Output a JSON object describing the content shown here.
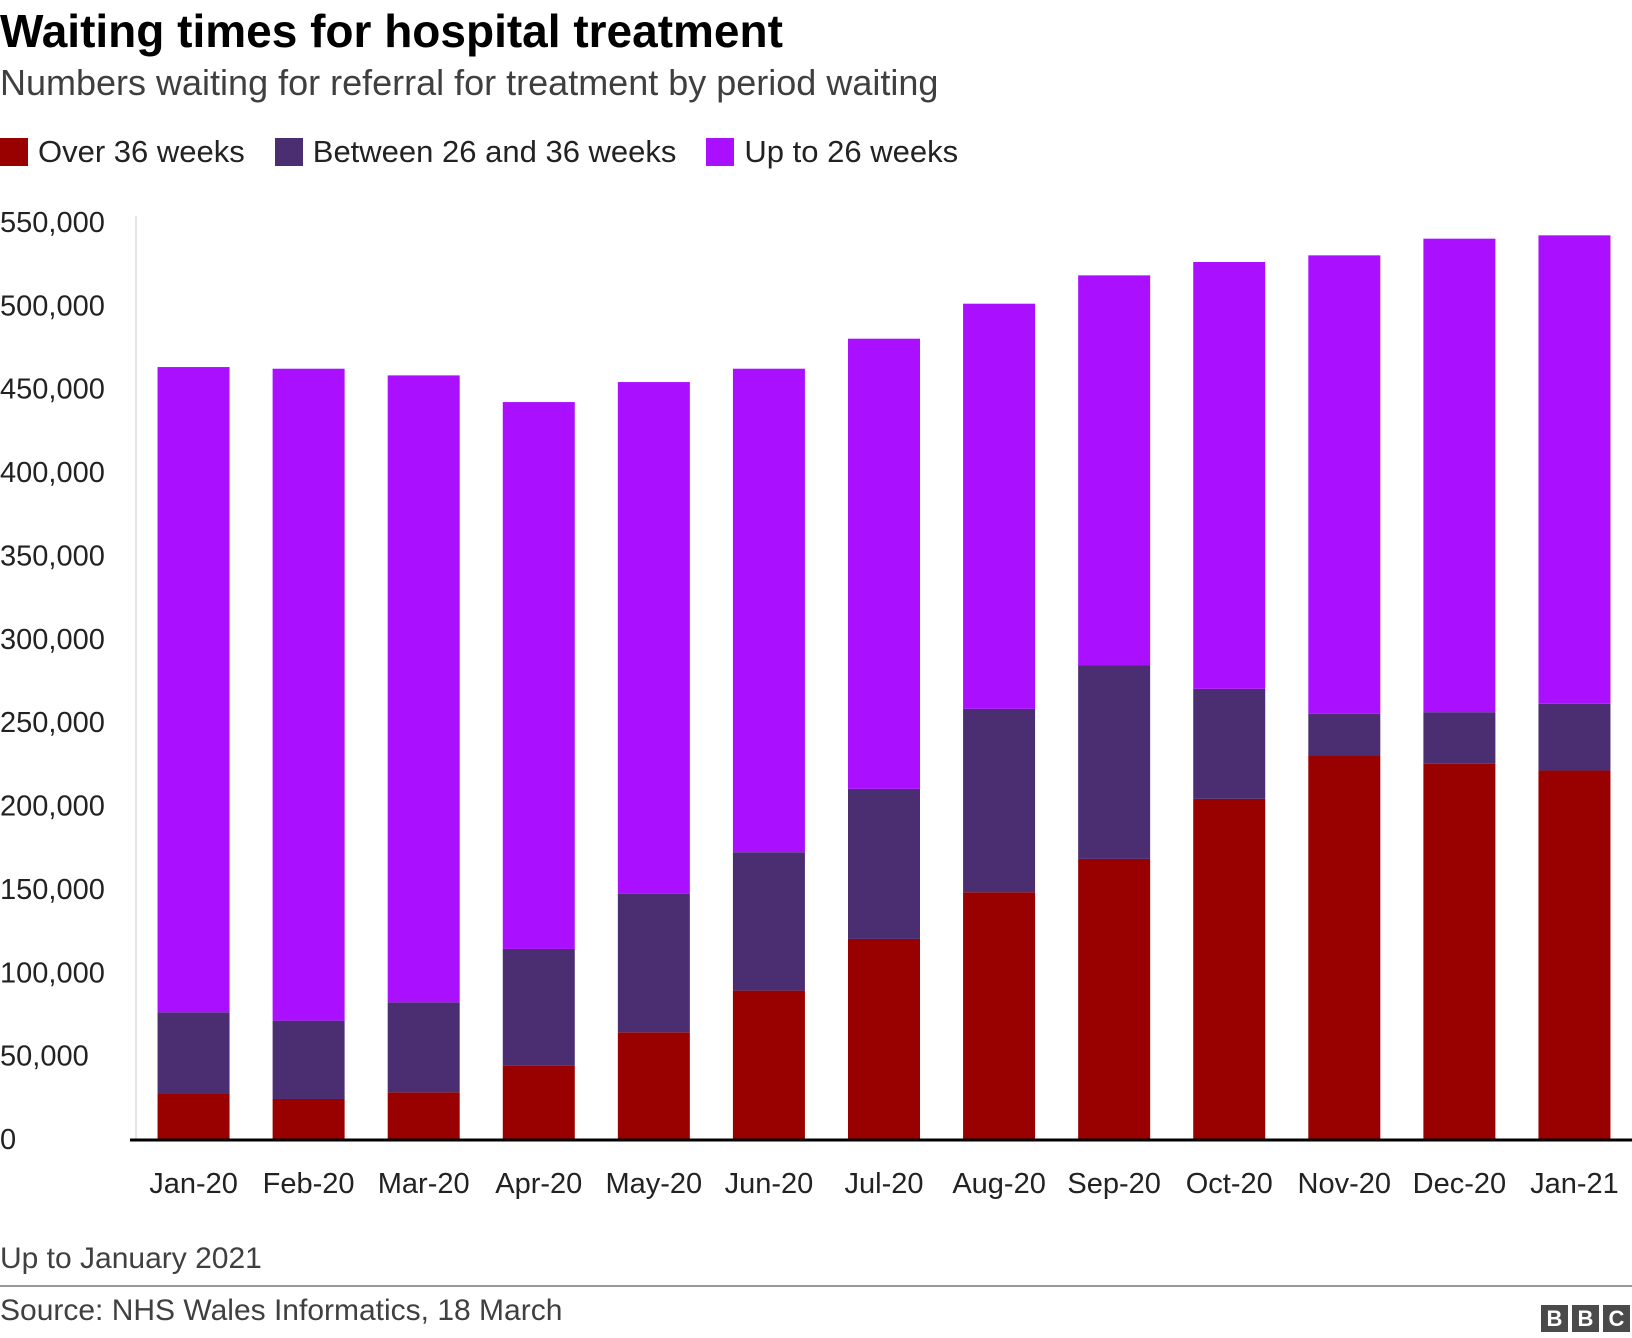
{
  "chart_data": {
    "type": "bar",
    "stacked": true,
    "title": "Waiting times for hospital treatment",
    "subtitle": "Numbers waiting for referral for treatment by period waiting",
    "categories": [
      "Jan-20",
      "Feb-20",
      "Mar-20",
      "Apr-20",
      "May-20",
      "Jun-20",
      "Jul-20",
      "Aug-20",
      "Sep-20",
      "Oct-20",
      "Nov-20",
      "Dec-20",
      "Jan-21"
    ],
    "series": [
      {
        "name": "Over 36 weeks",
        "color": "#990000",
        "values": [
          27000,
          24000,
          28000,
          44000,
          64000,
          89000,
          120000,
          148000,
          168000,
          204000,
          230000,
          225000,
          221000
        ]
      },
      {
        "name": "Between 26 and 36 weeks",
        "color": "#4b2d72",
        "values": [
          49000,
          47000,
          54000,
          70000,
          83000,
          83000,
          90000,
          110000,
          116000,
          66000,
          25000,
          31000,
          40000
        ]
      },
      {
        "name": "Up to 26 weeks",
        "color": "#aa10ff",
        "values": [
          387000,
          391000,
          376000,
          328000,
          307000,
          290000,
          270000,
          243000,
          234000,
          256000,
          275000,
          284000,
          281000
        ]
      }
    ],
    "ylim": [
      0,
      550000
    ],
    "yticks": [
      0,
      50000,
      100000,
      150000,
      200000,
      250000,
      300000,
      350000,
      400000,
      450000,
      500000,
      550000
    ],
    "ytick_labels": [
      "0",
      "50,000",
      "100,000",
      "150,000",
      "200,000",
      "250,000",
      "300,000",
      "350,000",
      "400,000",
      "450,000",
      "500,000",
      "550,000"
    ],
    "xlabel": "",
    "ylabel": "",
    "grid": false,
    "legend": "top-left"
  },
  "footer": {
    "note": "Up to January 2021",
    "source": "Source: NHS Wales Informatics, 18 March",
    "logo_letters": [
      "B",
      "B",
      "C"
    ]
  }
}
